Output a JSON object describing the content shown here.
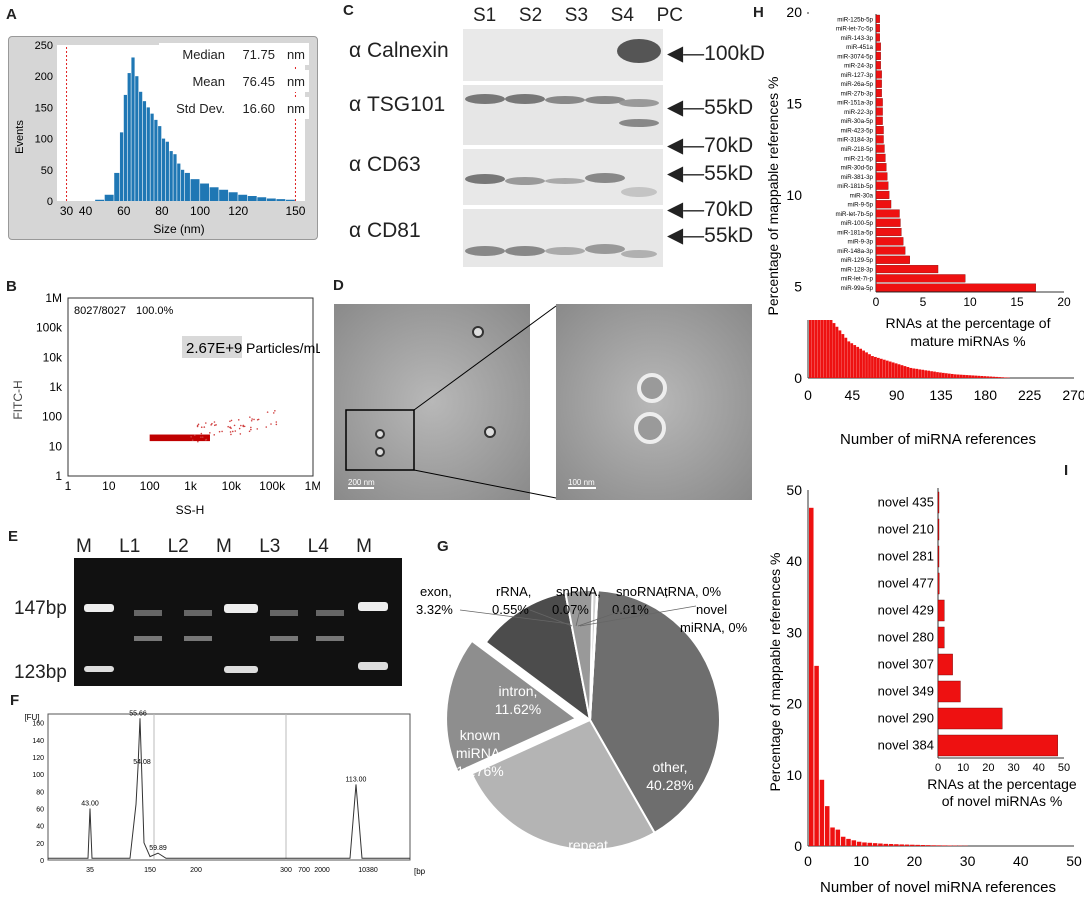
{
  "panels": {
    "A": {
      "label": "A",
      "stats": [
        {
          "name": "Median",
          "value": "71.75",
          "unit": "nm"
        },
        {
          "name": "Mean",
          "value": "76.45",
          "unit": "nm"
        },
        {
          "name": "Std Dev.",
          "value": "16.60",
          "unit": "nm"
        }
      ]
    },
    "B": {
      "label": "B",
      "count": "8027/8027",
      "percent": "100.0%",
      "concentration": "2.67E+9",
      "conc_unit": "Particles/mL"
    },
    "C": {
      "label": "C",
      "lanes": [
        "S1",
        "S2",
        "S3",
        "S4",
        "PC"
      ],
      "rows": [
        {
          "name": "α Calnexin",
          "markers": [
            "100kD"
          ]
        },
        {
          "name": "α TSG101",
          "markers": [
            "55kD"
          ]
        },
        {
          "name": "α CD63",
          "markers": [
            "70kD",
            "55kD"
          ]
        },
        {
          "name": "α CD81",
          "markers": [
            "70kD",
            "55kD"
          ]
        }
      ]
    },
    "D": {
      "label": "D",
      "scale_left": "200 nm",
      "scale_right": "100 nm"
    },
    "E": {
      "label": "E",
      "lanes": [
        "M",
        "L1",
        "L2",
        "M",
        "L3",
        "L4",
        "M"
      ],
      "markers": [
        "147bp",
        "123bp"
      ]
    },
    "F": {
      "label": "F"
    },
    "G": {
      "label": "G"
    },
    "H": {
      "label": "H"
    },
    "I": {
      "label": "I"
    }
  },
  "chart_data": [
    {
      "id": "A",
      "type": "bar",
      "title": "",
      "xlabel": "Size (nm)",
      "ylabel": "Events",
      "xlim": [
        30,
        150
      ],
      "ylim": [
        0,
        250
      ],
      "xticks": [
        30,
        40,
        60,
        80,
        100,
        120,
        150
      ],
      "yticks": [
        0,
        50,
        100,
        150,
        200,
        250
      ],
      "markers": [
        30,
        150
      ],
      "series": [
        {
          "name": "size distribution",
          "color": "#1f77b4",
          "x": [
            45,
            50,
            55,
            58,
            60,
            62,
            64,
            66,
            68,
            70,
            72,
            74,
            76,
            78,
            80,
            82,
            84,
            86,
            88,
            90,
            92,
            95,
            100,
            105,
            110,
            115,
            120,
            125,
            130,
            135,
            140,
            145
          ],
          "values": [
            2,
            10,
            45,
            110,
            170,
            205,
            230,
            200,
            175,
            160,
            150,
            140,
            130,
            120,
            100,
            95,
            80,
            75,
            60,
            50,
            45,
            35,
            28,
            22,
            18,
            14,
            10,
            8,
            6,
            4,
            3,
            2
          ]
        }
      ]
    },
    {
      "id": "B",
      "type": "scatter",
      "xlabel": "SS-H",
      "ylabel": "FITC-H",
      "xscale": "log",
      "yscale": "log",
      "xlim": [
        1,
        1000000
      ],
      "ylim": [
        1,
        1000000
      ],
      "xticks": [
        "1",
        "10",
        "100",
        "1k",
        "10k",
        "100k",
        "1M"
      ],
      "yticks": [
        "1",
        "10",
        "100",
        "1k",
        "10k",
        "100k",
        "1M"
      ],
      "cluster": {
        "x_range": [
          100,
          100000
        ],
        "y_center": 20,
        "color": "#c00000"
      }
    },
    {
      "id": "F",
      "type": "line",
      "xlabel": "[bp]",
      "ylabel": "[FU]",
      "ylim": [
        0,
        170
      ],
      "xticks": [
        "35",
        "150",
        "200",
        "300",
        "700",
        "2000",
        "10380"
      ],
      "yticks": [
        0,
        20,
        40,
        60,
        80,
        100,
        120,
        140,
        160
      ],
      "peaks": [
        {
          "label": "43.00",
          "value": 60
        },
        {
          "label": "55.66",
          "value": 165
        },
        {
          "label": "54.08",
          "value": 108
        },
        {
          "label": "59.89",
          "value": 8
        },
        {
          "label": "113.00",
          "value": 88
        }
      ]
    },
    {
      "id": "G",
      "type": "pie",
      "slices": [
        {
          "label": "other,",
          "pct": "40.28%",
          "value": 40.28,
          "color": "#6e6e6e"
        },
        {
          "label": "repeat,",
          "pct": "26.19%",
          "value": 26.19,
          "color": "#b4b4b4"
        },
        {
          "label": "known miRNA,",
          "pct": "16.76%",
          "value": 16.76,
          "color": "#8e8e8e"
        },
        {
          "label": "intron,",
          "pct": "11.62%",
          "value": 11.62,
          "color": "#4c4c4c"
        },
        {
          "label": "exon,",
          "pct": "3.32%",
          "value": 3.32,
          "color": "#999999"
        },
        {
          "label": "rRNA,",
          "pct": "0.55%",
          "value": 0.55,
          "color": "#cfcfcf"
        },
        {
          "label": "snRNA,",
          "pct": "0.07%",
          "value": 0.07,
          "color": "#dddddd"
        },
        {
          "label": "snoRNA,",
          "pct": "0.01%",
          "value": 0.01,
          "color": "#eeeeee"
        },
        {
          "label": "tRNA,",
          "pct": "0%",
          "value": 0,
          "color": "#f5f5f5"
        },
        {
          "label": "novel miRNA,",
          "pct": "0%",
          "value": 0,
          "color": "#f5f5f5"
        }
      ]
    },
    {
      "id": "H",
      "type": "bar",
      "xlabel": "Number of miRNA references",
      "ylabel": "Percentage of mappable references %",
      "xlim": [
        0,
        270
      ],
      "ylim": [
        0,
        20
      ],
      "xticks": [
        0,
        45,
        90,
        135,
        180,
        225,
        270
      ],
      "yticks": [
        0,
        5,
        10,
        15,
        20
      ],
      "values": [
        17,
        8.2,
        6.4,
        5.2,
        4.6,
        4.1,
        3.6,
        3.3,
        3.0,
        2.8,
        2.6,
        2.4,
        2.2,
        2.0,
        1.9,
        1.8,
        1.7,
        1.6,
        1.5,
        1.4,
        1.3,
        1.2,
        1.15,
        1.1,
        1.05,
        1.0,
        0.95,
        0.9,
        0.85,
        0.8,
        0.75,
        0.7,
        0.65,
        0.6,
        0.55,
        0.52,
        0.5,
        0.47,
        0.45,
        0.42,
        0.4,
        0.37,
        0.35,
        0.32,
        0.3,
        0.28,
        0.26,
        0.24,
        0.22,
        0.2,
        0.19,
        0.18,
        0.17,
        0.16,
        0.15,
        0.14,
        0.13,
        0.12,
        0.11,
        0.1,
        0.09,
        0.08,
        0.07,
        0.06,
        0.05,
        0.04,
        0.03,
        0.02
      ],
      "inset": {
        "type": "barh",
        "xlabel": "RNAs at the percentage of mature miRNAs %",
        "xlim": [
          0,
          20
        ],
        "xticks": [
          0,
          5,
          10,
          15,
          20
        ],
        "categories": [
          "miR-125b-5p",
          "miR-let-7c-5p",
          "miR-143-3p",
          "miR-451a",
          "miR-3074-5p",
          "miR-24-3p",
          "miR-127-3p",
          "miR-26a-5p",
          "miR-27b-3p",
          "miR-151a-3p",
          "miR-22-3p",
          "miR-30a-5p",
          "miR-423-5p",
          "miR-3184-3p",
          "miR-218-5p",
          "miR-21-5p",
          "miR-30d-5p",
          "miR-381-3p",
          "miR-181b-5p",
          "miR-30a",
          "miR-9-5p",
          "miR-let-7b-5p",
          "miR-100-5p",
          "miR-181a-5p",
          "miR-9-3p",
          "miR-148a-3p",
          "miR-129-5p",
          "miR-128-3p",
          "miR-let-7i-p",
          "miR-99a-5p"
        ],
        "values": [
          0.4,
          0.4,
          0.4,
          0.5,
          0.5,
          0.5,
          0.6,
          0.6,
          0.6,
          0.7,
          0.7,
          0.7,
          0.8,
          0.8,
          0.9,
          1.0,
          1.1,
          1.2,
          1.3,
          1.4,
          1.6,
          2.5,
          2.6,
          2.7,
          2.9,
          3.1,
          3.6,
          6.6,
          9.5,
          17.0
        ]
      }
    },
    {
      "id": "I",
      "type": "bar",
      "xlabel": "Number of novel miRNA references",
      "ylabel": "Percentage of mappable references %",
      "xlim": [
        0,
        50
      ],
      "ylim": [
        0,
        50
      ],
      "xticks": [
        0,
        10,
        20,
        30,
        40,
        50
      ],
      "yticks": [
        0,
        10,
        20,
        30,
        40,
        50
      ],
      "values": [
        47.5,
        25.3,
        9.3,
        5.6,
        2.6,
        2.3,
        1.3,
        1.0,
        0.8,
        0.6,
        0.5,
        0.45,
        0.4,
        0.35,
        0.3,
        0.28,
        0.25,
        0.22,
        0.2,
        0.18,
        0.16,
        0.14,
        0.12,
        0.1,
        0.09,
        0.08,
        0.07,
        0.06,
        0.05,
        0.04
      ],
      "inset": {
        "type": "barh",
        "xlabel": "RNAs at the percentage of novel miRNAs %",
        "xlim": [
          0,
          50
        ],
        "xticks": [
          0,
          10,
          20,
          30,
          40,
          50
        ],
        "categories": [
          "novel 435",
          "novel 210",
          "novel 281",
          "novel 477",
          "novel 429",
          "novel 280",
          "novel 307",
          "novel 349",
          "novel 290",
          "novel 384"
        ],
        "values": [
          0.3,
          0.3,
          0.3,
          0.5,
          2.5,
          2.5,
          5.8,
          8.9,
          25.5,
          47.5
        ]
      }
    }
  ]
}
